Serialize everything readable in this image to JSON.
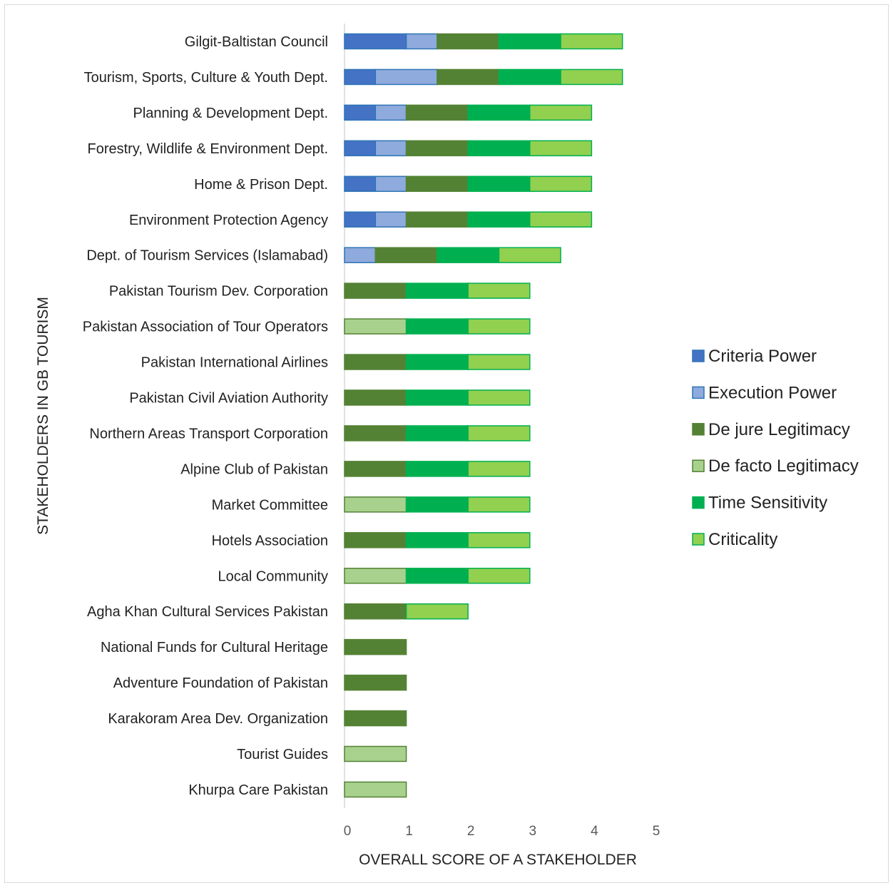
{
  "chart_data": {
    "type": "bar",
    "orientation": "horizontal",
    "stacked": true,
    "title": "",
    "xlabel": "OVERALL SCORE OF A STAKEHOLDER",
    "ylabel": "STAKEHOLDERS IN GB TOURISM",
    "xlim": [
      0,
      5
    ],
    "xticks": [
      0,
      1,
      2,
      3,
      4,
      5
    ],
    "grid": false,
    "legend_position": "right",
    "categories": [
      "Gilgit-Baltistan Council",
      "Tourism, Sports, Culture & Youth Dept.",
      "Planning & Development Dept.",
      "Forestry, Wildlife & Environment Dept.",
      "Home & Prison Dept.",
      "Environment Protection Agency",
      "Dept. of Tourism Services (Islamabad)",
      "Pakistan Tourism Dev. Corporation",
      "Pakistan Association of Tour Operators",
      "Pakistan International Airlines",
      "Pakistan Civil Aviation Authority",
      "Northern Areas Transport Corporation",
      "Alpine Club of Pakistan",
      "Market Committee",
      "Hotels Association",
      "Local Community",
      "Agha Khan Cultural Services Pakistan",
      "National Funds for Cultural Heritage",
      "Adventure Foundation of Pakistan",
      "Karakoram Area Dev. Organization",
      "Tourist Guides",
      "Khurpa Care Pakistan"
    ],
    "series": [
      {
        "name": "Criteria Power",
        "fill": "#4472c4",
        "stroke": "#2e75b6",
        "values": [
          1,
          0.5,
          0.5,
          0.5,
          0.5,
          0.5,
          0,
          0,
          0,
          0,
          0,
          0,
          0,
          0,
          0,
          0,
          0,
          0,
          0,
          0,
          0,
          0
        ]
      },
      {
        "name": "Execution Power",
        "fill": "#8faadc",
        "stroke": "#2e75b6",
        "values": [
          0.5,
          1,
          0.5,
          0.5,
          0.5,
          0.5,
          0.5,
          0,
          0,
          0,
          0,
          0,
          0,
          0,
          0,
          0,
          0,
          0,
          0,
          0,
          0,
          0
        ]
      },
      {
        "name": "De jure Legitimacy",
        "fill": "#548235",
        "stroke": "#548235",
        "values": [
          1,
          1,
          1,
          1,
          1,
          1,
          1,
          1,
          0,
          1,
          1,
          1,
          1,
          0,
          1,
          0,
          1,
          1,
          1,
          1,
          0,
          0
        ]
      },
      {
        "name": "De facto Legitimacy",
        "fill": "#a9d18e",
        "stroke": "#548235",
        "values": [
          0,
          0,
          0,
          0,
          0,
          0,
          0,
          0,
          1,
          0,
          0,
          0,
          0,
          1,
          0,
          1,
          0,
          0,
          0,
          0,
          1,
          1
        ]
      },
      {
        "name": "Time Sensitivity",
        "fill": "#00b050",
        "stroke": "#00b050",
        "values": [
          1,
          1,
          1,
          1,
          1,
          1,
          1,
          1,
          1,
          1,
          1,
          1,
          1,
          1,
          1,
          1,
          0,
          0,
          0,
          0,
          0,
          0
        ]
      },
      {
        "name": "Criticality",
        "fill": "#92d050",
        "stroke": "#00b050",
        "values": [
          1,
          1,
          1,
          1,
          1,
          1,
          1,
          1,
          1,
          1,
          1,
          1,
          1,
          1,
          1,
          1,
          1,
          0,
          0,
          0,
          0,
          0
        ]
      }
    ]
  }
}
